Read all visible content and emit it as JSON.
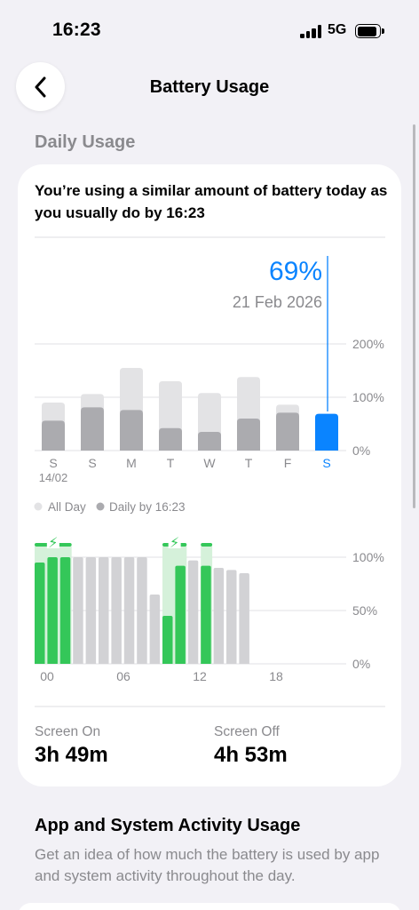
{
  "status_bar": {
    "time": "16:23",
    "network": "5G"
  },
  "nav": {
    "title": "Battery Usage"
  },
  "daily_usage": {
    "section_title": "Daily Usage",
    "headline": "You’re using a similar amount of battery today as you usually do by 16:23",
    "selected": {
      "percent": "69%",
      "date": "21 Feb 2026"
    },
    "legend": {
      "all_day": "All Day",
      "daily_by": "Daily by 16:23"
    },
    "first_day_date": "14/02"
  },
  "colors": {
    "accent_blue": "#0a84ff",
    "bar_light": "#e3e3e5",
    "bar_dark": "#ababaf",
    "charging_green": "#34c759",
    "charge_zone": "#d5f1da",
    "level_gray": "#d2d2d5"
  },
  "chart_data": [
    {
      "type": "bar",
      "categories": [
        "S",
        "S",
        "M",
        "T",
        "W",
        "T",
        "F",
        "S"
      ],
      "series": [
        {
          "name": "All Day",
          "values": [
            90,
            106,
            155,
            130,
            108,
            138,
            86,
            69
          ]
        },
        {
          "name": "Daily by 16:23",
          "values": [
            56,
            81,
            76,
            42,
            35,
            60,
            71,
            69
          ]
        }
      ],
      "selected_index": 7,
      "yticks": [
        "0%",
        "100%",
        "200%"
      ],
      "ylim": [
        0,
        200
      ]
    },
    {
      "type": "bar",
      "xticks": [
        "00",
        "06",
        "12",
        "18"
      ],
      "yticks": [
        "0%",
        "50%",
        "100%"
      ],
      "ylim": [
        0,
        100
      ],
      "battery_level": [
        95,
        100,
        100,
        100,
        100,
        100,
        100,
        100,
        100,
        65,
        45,
        92,
        97,
        92,
        90,
        88,
        85
      ],
      "charging": [
        true,
        true,
        true,
        false,
        false,
        false,
        false,
        false,
        false,
        false,
        true,
        true,
        false,
        true,
        false,
        false,
        false
      ],
      "charging_labels": [
        "⚡",
        "⚡"
      ]
    }
  ],
  "screen_on": {
    "label": "Screen On",
    "value": "3h 49m"
  },
  "screen_off": {
    "label": "Screen Off",
    "value": "4h 53m"
  },
  "activity": {
    "title": "App and System Activity Usage",
    "description": "Get an idea of how much the battery is used by app and system activity throughout the day."
  }
}
